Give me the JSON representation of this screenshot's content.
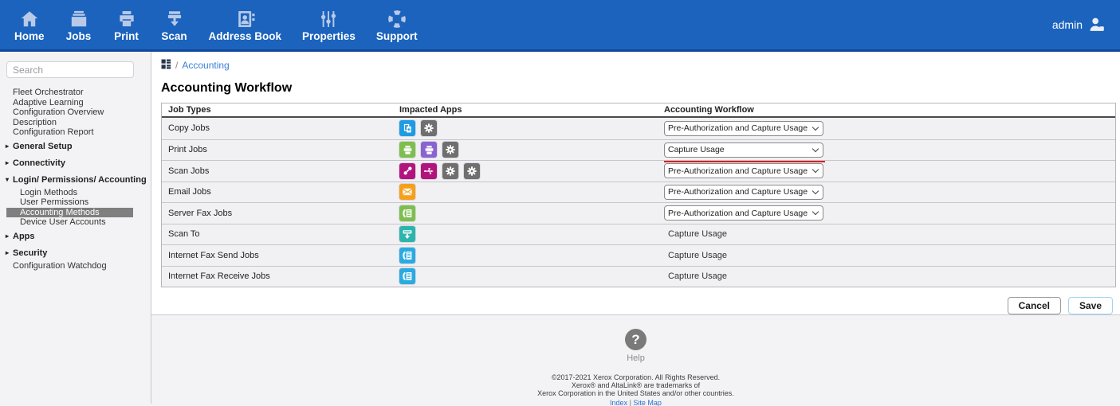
{
  "nav": {
    "items": [
      {
        "label": "Home",
        "icon": "home-icon"
      },
      {
        "label": "Jobs",
        "icon": "jobs-icon"
      },
      {
        "label": "Print",
        "icon": "print-icon"
      },
      {
        "label": "Scan",
        "icon": "scan-icon"
      },
      {
        "label": "Address Book",
        "icon": "address-book-icon"
      },
      {
        "label": "Properties",
        "icon": "properties-icon"
      },
      {
        "label": "Support",
        "icon": "support-icon"
      }
    ],
    "user": {
      "label": "admin",
      "icon": "user-icon"
    }
  },
  "sidebar": {
    "search_placeholder": "Search",
    "items": [
      {
        "label": "Fleet Orchestrator",
        "type": "item"
      },
      {
        "label": "Adaptive Learning",
        "type": "item"
      },
      {
        "label": "Configuration Overview",
        "type": "item"
      },
      {
        "label": "Description",
        "type": "item"
      },
      {
        "label": "Configuration Report",
        "type": "item"
      },
      {
        "label": "General Setup",
        "type": "section",
        "state": "collapsed"
      },
      {
        "label": "Connectivity",
        "type": "section",
        "state": "collapsed"
      },
      {
        "label": "Login/ Permissions/ Accounting",
        "type": "section",
        "state": "expanded"
      },
      {
        "label": "Login Methods",
        "type": "child"
      },
      {
        "label": "User Permissions",
        "type": "child"
      },
      {
        "label": "Accounting Methods",
        "type": "child",
        "selected": true
      },
      {
        "label": "Device User Accounts",
        "type": "child"
      },
      {
        "label": "Apps",
        "type": "section",
        "state": "collapsed"
      },
      {
        "label": "Security",
        "type": "section",
        "state": "collapsed"
      },
      {
        "label": "Configuration Watchdog",
        "type": "item"
      }
    ]
  },
  "breadcrumb": {
    "icon": "grid-icon",
    "separator": "/",
    "page": "Accounting"
  },
  "main": {
    "title": "Accounting Workflow",
    "table": {
      "headers": [
        "Job Types",
        "Impacted Apps",
        "Accounting Workflow"
      ],
      "rows": [
        {
          "job_type": "Copy Jobs",
          "apps": [
            {
              "icon": "copy-app-icon",
              "color": "#1e9be2"
            },
            {
              "icon": "gear-app-icon",
              "color": "#6f6f6f"
            }
          ],
          "workflow": {
            "control": "select",
            "value": "Pre-Authorization and Capture Usage",
            "modified": false
          }
        },
        {
          "job_type": "Print Jobs",
          "apps": [
            {
              "icon": "printer-app-icon",
              "color": "#7dbf4e"
            },
            {
              "icon": "printer-app-icon",
              "color": "#8a63d2"
            },
            {
              "icon": "gear-app-icon",
              "color": "#6f6f6f"
            }
          ],
          "workflow": {
            "control": "select",
            "value": "Capture Usage",
            "modified": true
          }
        },
        {
          "job_type": "Scan Jobs",
          "apps": [
            {
              "icon": "workflow-scan-app-icon",
              "color": "#b3137f"
            },
            {
              "icon": "usb-app-icon",
              "color": "#b3137f"
            },
            {
              "icon": "gear-app-icon",
              "color": "#6f6f6f"
            },
            {
              "icon": "gear-app-icon",
              "color": "#6f6f6f"
            }
          ],
          "workflow": {
            "control": "select",
            "value": "Pre-Authorization and Capture Usage",
            "modified": false
          }
        },
        {
          "job_type": "Email Jobs",
          "apps": [
            {
              "icon": "email-app-icon",
              "color": "#f6a01a"
            }
          ],
          "workflow": {
            "control": "select",
            "value": "Pre-Authorization and Capture Usage",
            "modified": false
          }
        },
        {
          "job_type": "Server Fax Jobs",
          "apps": [
            {
              "icon": "fax-app-icon",
              "color": "#7dbf4e"
            }
          ],
          "workflow": {
            "control": "select",
            "value": "Pre-Authorization and Capture Usage",
            "modified": false
          }
        },
        {
          "job_type": "Scan To",
          "apps": [
            {
              "icon": "scan-to-app-icon",
              "color": "#2cb5ac"
            }
          ],
          "workflow": {
            "control": "text",
            "value": "Capture Usage"
          }
        },
        {
          "job_type": "Internet Fax Send Jobs",
          "apps": [
            {
              "icon": "fax-app-icon",
              "color": "#29abe2"
            }
          ],
          "workflow": {
            "control": "text",
            "value": "Capture Usage"
          }
        },
        {
          "job_type": "Internet Fax Receive Jobs",
          "apps": [
            {
              "icon": "fax-app-icon",
              "color": "#29abe2"
            }
          ],
          "workflow": {
            "control": "text",
            "value": "Capture Usage"
          }
        }
      ]
    },
    "buttons": {
      "cancel": "Cancel",
      "save": "Save"
    }
  },
  "footer": {
    "help_icon": "help-icon",
    "help_question_mark": "?",
    "help_label": "Help",
    "copyright_lines": [
      "©2017-2021 Xerox Corporation. All Rights Reserved.",
      "Xerox® and AltaLink® are trademarks of",
      "Xerox Corporation in the United States and/or other countries."
    ],
    "links": [
      {
        "label": "Index"
      },
      {
        "label": "Site Map"
      }
    ],
    "link_separator": "|"
  },
  "colors": {
    "nav_background": "#1b63bd",
    "nav_border_bottom": "#12489b",
    "nav_icon": "#b9c9e8",
    "link_blue": "#3a7fd5",
    "selected_menu_background": "#7f7f7f",
    "modified_underline_red": "#dd1d1d",
    "table_row_background": "#f1f1f4",
    "save_button_border": "#9fd4f0"
  }
}
